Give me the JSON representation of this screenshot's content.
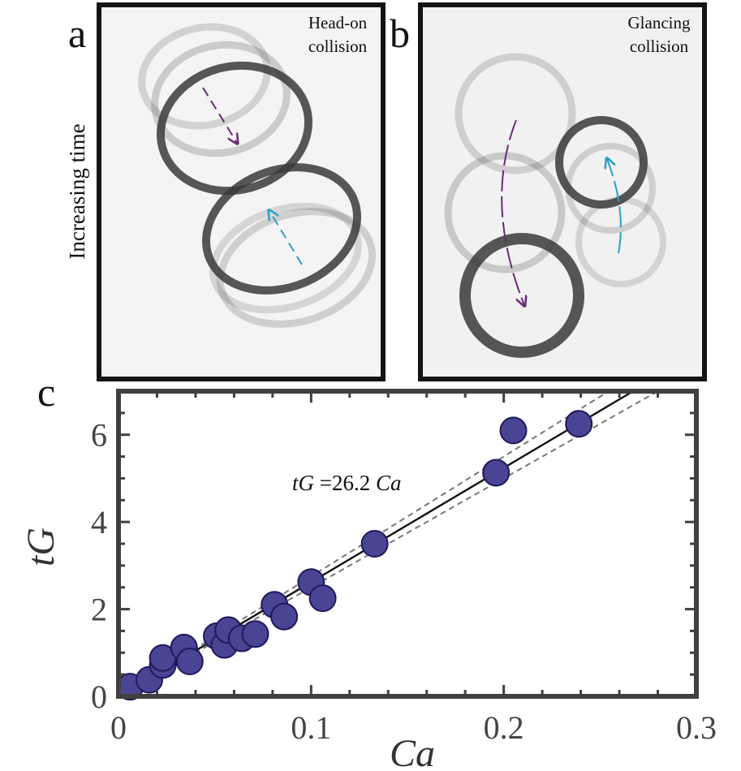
{
  "panels": {
    "a": {
      "letter": "a",
      "label_line1": "Head-on",
      "label_line2": "collision"
    },
    "b": {
      "letter": "b",
      "label_line1": "Glancing",
      "label_line2": "collision"
    },
    "c": {
      "letter": "c"
    },
    "time_axis_label": "Increasing time"
  },
  "colors": {
    "drop_ring": "#3a3a3a",
    "arrow_purple": "#6a2a7a",
    "arrow_cyan": "#2aa0c8",
    "marker_fill": "#4a4494",
    "marker_edge": "#1e1a5a",
    "fit_line": "#111111",
    "bound_line": "#777777",
    "frame": "#404040"
  },
  "chart_data": {
    "type": "scatter",
    "xlabel": "Ca",
    "ylabel": "tG",
    "xlim": [
      0,
      0.3
    ],
    "ylim": [
      0,
      7
    ],
    "xticks": [
      0,
      0.1,
      0.2,
      0.3
    ],
    "xtick_labels": [
      "0",
      "0.1",
      "0.2",
      "0.3"
    ],
    "yticks": [
      0,
      2,
      4,
      6
    ],
    "ytick_labels": [
      "0",
      "2",
      "4",
      "6"
    ],
    "grid": false,
    "annotation": {
      "var": "tG",
      "eq": " =26.2 ",
      "var2": "Ca"
    },
    "fit": {
      "slope": 26.2
    },
    "bounds": {
      "slopes": [
        25.0,
        27.5
      ]
    },
    "points": [
      {
        "x": 0.006,
        "y": 0.22
      },
      {
        "x": 0.016,
        "y": 0.38
      },
      {
        "x": 0.023,
        "y": 0.72
      },
      {
        "x": 0.023,
        "y": 0.88
      },
      {
        "x": 0.034,
        "y": 1.12
      },
      {
        "x": 0.037,
        "y": 0.8
      },
      {
        "x": 0.051,
        "y": 1.38
      },
      {
        "x": 0.055,
        "y": 1.18
      },
      {
        "x": 0.057,
        "y": 1.52
      },
      {
        "x": 0.064,
        "y": 1.33
      },
      {
        "x": 0.071,
        "y": 1.43
      },
      {
        "x": 0.081,
        "y": 2.1
      },
      {
        "x": 0.086,
        "y": 1.83
      },
      {
        "x": 0.1,
        "y": 2.62
      },
      {
        "x": 0.106,
        "y": 2.25
      },
      {
        "x": 0.133,
        "y": 3.5
      },
      {
        "x": 0.196,
        "y": 5.13
      },
      {
        "x": 0.205,
        "y": 6.1
      },
      {
        "x": 0.239,
        "y": 6.25
      }
    ]
  }
}
